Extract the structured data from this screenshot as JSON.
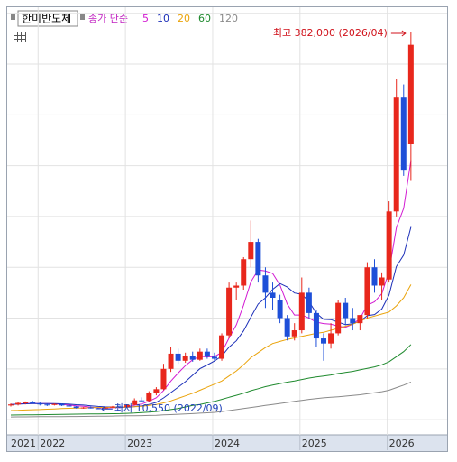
{
  "chart_data": {
    "type": "candlestick",
    "title": "한미반도체",
    "legend_label": "종가 단순",
    "categories": [
      "2021",
      null,
      null,
      null,
      "2022",
      null,
      null,
      null,
      null,
      null,
      null,
      null,
      null,
      null,
      null,
      null,
      "2023",
      null,
      null,
      null,
      null,
      null,
      null,
      null,
      null,
      null,
      null,
      null,
      "2024",
      null,
      null,
      null,
      null,
      null,
      null,
      null,
      null,
      null,
      null,
      null,
      "2025",
      null,
      null,
      null,
      null,
      null,
      null,
      null,
      null,
      null,
      null,
      null,
      "2026",
      null,
      null,
      null
    ],
    "open": [
      14000,
      15000,
      16500,
      17000,
      16000,
      15000,
      14500,
      15500,
      14000,
      13000,
      11500,
      12000,
      11200,
      11000,
      12000,
      13000,
      12500,
      14500,
      19000,
      18500,
      26000,
      30000,
      50000,
      65000,
      58000,
      63000,
      59000,
      67000,
      62000,
      60000,
      83000,
      130000,
      132000,
      158000,
      175000,
      142000,
      125000,
      118000,
      100000,
      82000,
      88000,
      125000,
      105000,
      80000,
      75000,
      85000,
      115000,
      100000,
      95000,
      103000,
      150000,
      132000,
      138000,
      205000,
      317000,
      271000
    ],
    "high": [
      16000,
      17000,
      18000,
      18500,
      17000,
      16000,
      16000,
      16000,
      15000,
      13500,
      12500,
      13000,
      11800,
      12500,
      13500,
      14000,
      15000,
      21000,
      22000,
      28000,
      32000,
      55000,
      72000,
      70000,
      66000,
      67000,
      70000,
      70000,
      66000,
      85000,
      135000,
      135000,
      160000,
      196000,
      178000,
      150000,
      135000,
      123000,
      103000,
      95000,
      140000,
      130000,
      108000,
      85000,
      95000,
      118000,
      120000,
      110000,
      103000,
      155000,
      158000,
      145000,
      215000,
      335000,
      330000,
      382000
    ],
    "low": [
      13000,
      14000,
      15000,
      15500,
      14000,
      13500,
      14000,
      13500,
      12500,
      11000,
      10800,
      11000,
      10550,
      10800,
      11500,
      12000,
      12000,
      14000,
      17000,
      18000,
      24000,
      29000,
      47000,
      55000,
      56000,
      57000,
      58000,
      60000,
      58000,
      58000,
      80000,
      118000,
      128000,
      150000,
      135000,
      110000,
      108000,
      95000,
      78000,
      78000,
      85000,
      100000,
      72000,
      58000,
      70000,
      83000,
      93000,
      88000,
      88000,
      100000,
      125000,
      118000,
      135000,
      200000,
      240000,
      235000
    ],
    "close": [
      15000,
      16500,
      17000,
      16000,
      15000,
      14500,
      15500,
      14000,
      13000,
      11500,
      12000,
      11200,
      11000,
      12000,
      13000,
      12500,
      14500,
      19000,
      18500,
      26000,
      30000,
      50000,
      65000,
      58000,
      63000,
      59000,
      67000,
      62000,
      60000,
      83000,
      130000,
      132000,
      158000,
      175000,
      142000,
      125000,
      120000,
      100000,
      82000,
      88000,
      125000,
      105000,
      80000,
      75000,
      85000,
      115000,
      100000,
      95000,
      103000,
      150000,
      132000,
      140000,
      205000,
      317000,
      246000,
      369000
    ],
    "up_color": "#e8271c",
    "down_color": "#1e4fd8",
    "series": [
      {
        "name": "5",
        "color": "#d21ad2",
        "values": [
          15000,
          15500,
          16000,
          16000,
          15900,
          15800,
          15600,
          15000,
          14400,
          13700,
          13200,
          12340,
          11740,
          11540,
          11840,
          11940,
          12600,
          14200,
          15500,
          18100,
          21600,
          28700,
          37900,
          45800,
          53200,
          59000,
          62400,
          61800,
          62200,
          66200,
          80400,
          93400,
          112600,
          135600,
          147400,
          146400,
          144000,
          132400,
          113800,
          103000,
          103000,
          100000,
          96000,
          94600,
          94000,
          92000,
          91000,
          94000,
          99600,
          112600,
          116000,
          124000,
          146000,
          188800,
          208000,
          255400
        ]
      },
      {
        "name": "10",
        "color": "#1c2fb8",
        "values": [
          15000,
          15300,
          15600,
          15800,
          15900,
          15900,
          15800,
          15600,
          15300,
          14750,
          14400,
          13670,
          13070,
          12620,
          12520,
          12140,
          12170,
          12870,
          13670,
          15020,
          17100,
          21450,
          26700,
          31950,
          37400,
          43850,
          50150,
          53800,
          57700,
          62600,
          71400,
          77600,
          87400,
          100900,
          113900,
          119900,
          128300,
          134000,
          130600,
          124700,
          123500,
          116200,
          104900,
          98800,
          98500,
          96000,
          93500,
          94300,
          96800,
          102300,
          103500,
          109000,
          122800,
          150700,
          162000,
          189700
        ]
      },
      {
        "name": "20",
        "color": "#eaa30a",
        "values": [
          9000,
          9200,
          9500,
          9800,
          10000,
          10300,
          10600,
          10900,
          11200,
          11400,
          11600,
          11800,
          12000,
          12100,
          12200,
          12300,
          12500,
          12800,
          13200,
          14000,
          15000,
          16500,
          18500,
          21000,
          23500,
          26000,
          29000,
          32000,
          35000,
          38000,
          43000,
          48000,
          54000,
          61000,
          66000,
          71000,
          75000,
          77000,
          79000,
          80500,
          82000,
          83500,
          85000,
          86000,
          88000,
          90000,
          92000,
          94000,
          97000,
          100000,
          102000,
          104000,
          106000,
          112000,
          120000,
          133000
        ]
      },
      {
        "name": "60",
        "color": "#1f8a2e",
        "values": [
          4500,
          4600,
          4700,
          4800,
          4900,
          5000,
          5100,
          5200,
          5300,
          5400,
          5500,
          5600,
          5700,
          5800,
          5900,
          6000,
          6200,
          6500,
          7000,
          7500,
          8000,
          9000,
          10000,
          11000,
          12500,
          14000,
          15000,
          16500,
          18000,
          20000,
          22000,
          24000,
          26000,
          28500,
          30500,
          32500,
          34000,
          35500,
          37000,
          38000,
          39500,
          41000,
          42000,
          43000,
          44000,
          45500,
          46500,
          47500,
          49000,
          50500,
          52000,
          54000,
          57000,
          62000,
          67000,
          74000
        ]
      },
      {
        "name": "120",
        "color": "#8a8a8a",
        "values": [
          2700,
          2750,
          2800,
          2850,
          2900,
          2950,
          3000,
          3050,
          3100,
          3150,
          3200,
          3300,
          3400,
          3500,
          3600,
          3700,
          3800,
          3900,
          4000,
          4200,
          4400,
          4700,
          5000,
          5300,
          5600,
          6000,
          6400,
          6800,
          7200,
          8000,
          9000,
          10000,
          11000,
          12000,
          13000,
          14000,
          15000,
          16000,
          17000,
          18000,
          19000,
          20000,
          20800,
          21500,
          22000,
          22600,
          23200,
          23800,
          24500,
          25500,
          26500,
          27500,
          29000,
          31500,
          34000,
          37000
        ]
      }
    ],
    "ylim": [
      -15000,
      406000
    ],
    "yticks": [
      0,
      50000,
      100000,
      150000,
      200000,
      250000,
      300000,
      350000,
      400000
    ],
    "grid": true,
    "annotations": [
      {
        "text": "최고 382,000 (2026/04)",
        "color": "#d0121b"
      },
      {
        "text": "최저 10,550 (2022/09)",
        "color": "#1e3fb8"
      }
    ]
  }
}
